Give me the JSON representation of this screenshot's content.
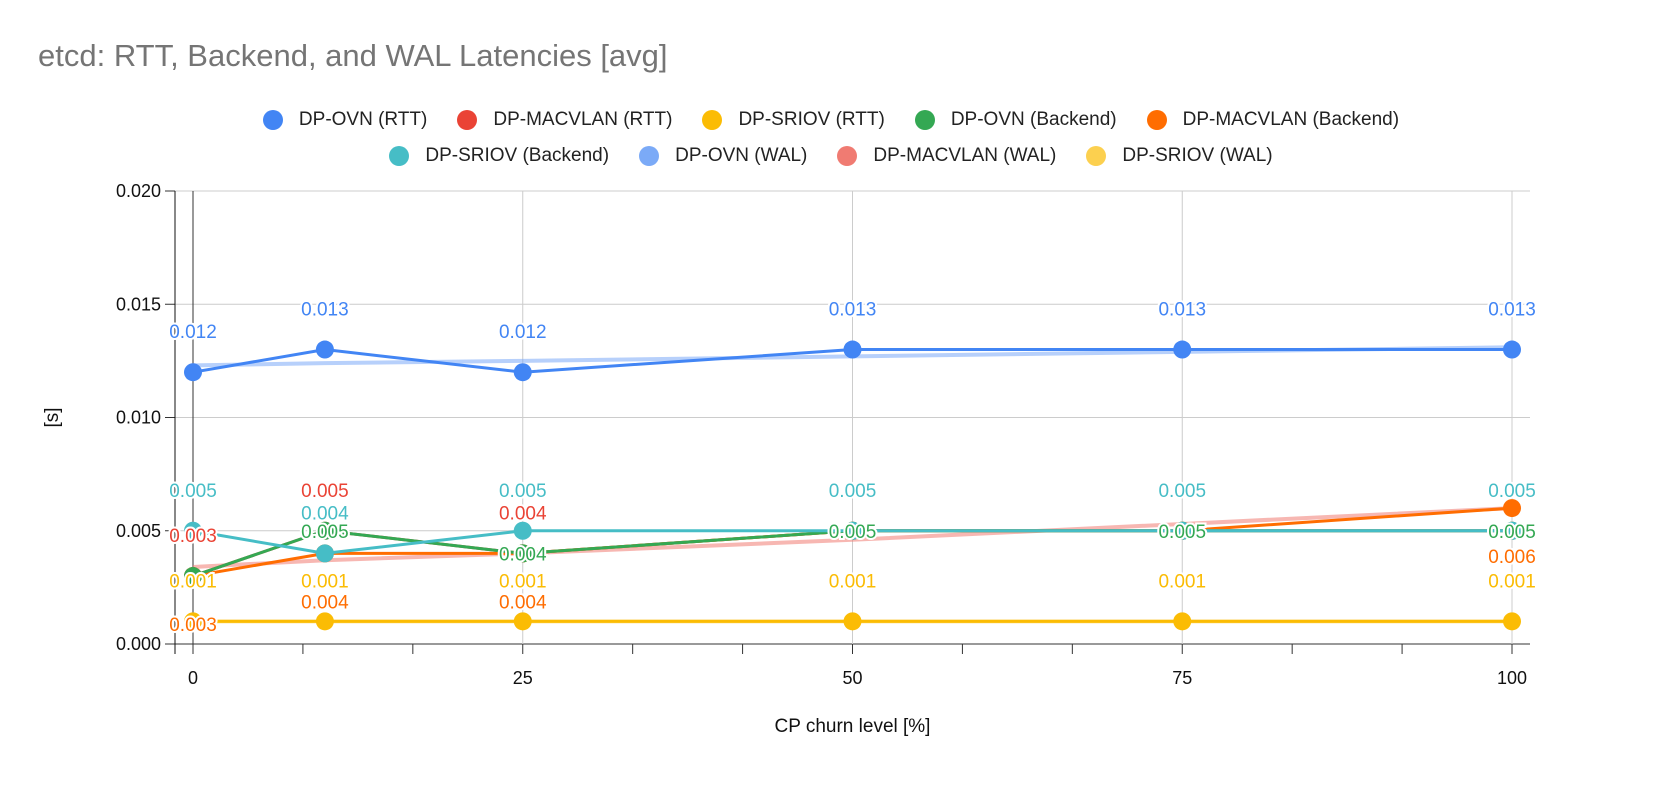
{
  "chart_data": {
    "type": "line",
    "title": "etcd: RTT, Backend, and WAL Latencies [avg]",
    "xlabel": "CP churn level [%]",
    "ylabel": "[s]",
    "x": [
      0,
      10,
      25,
      50,
      75,
      100
    ],
    "xticks": [
      "0",
      "25",
      "50",
      "75",
      "100"
    ],
    "xtick_values": [
      0,
      25,
      50,
      75,
      100
    ],
    "yticks": [
      "0.000",
      "0.005",
      "0.010",
      "0.015",
      "0.020"
    ],
    "ytick_values": [
      0,
      0.005,
      0.01,
      0.015,
      0.02
    ],
    "xlim": [
      0,
      100
    ],
    "ylim": [
      0,
      0.02
    ],
    "grid": true,
    "legend_position": "top",
    "series": [
      {
        "name": "DP-OVN (RTT)",
        "color": "#4285f4",
        "values": [
          0.012,
          0.013,
          0.012,
          0.013,
          0.013,
          0.013
        ],
        "labels": [
          "0.012",
          "0.013",
          "0.012",
          "0.013",
          "0.013",
          "0.013"
        ],
        "label_pos": "above"
      },
      {
        "name": "DP-MACVLAN (RTT)",
        "color": "#ea4335",
        "values": [
          0.003,
          0.005,
          0.004,
          0.005,
          0.005,
          0.005
        ],
        "labels": [
          "0.003",
          "0.005",
          "0.004",
          null,
          null,
          null
        ],
        "label_pos": "above"
      },
      {
        "name": "DP-SRIOV (RTT)",
        "color": "#fbbc04",
        "values": [
          0.001,
          0.001,
          0.001,
          0.001,
          0.001,
          0.001
        ],
        "labels": [
          "0.001",
          "0.001",
          "0.001",
          "0.001",
          "0.001",
          "0.001"
        ],
        "label_pos": "above"
      },
      {
        "name": "DP-OVN (Backend)",
        "color": "#34a853",
        "values": [
          0.003,
          0.005,
          0.004,
          0.005,
          0.005,
          0.005
        ],
        "labels": [
          null,
          "0.005",
          "0.004",
          "0.005",
          "0.005",
          "0.005"
        ],
        "label_pos": "on"
      },
      {
        "name": "DP-MACVLAN (Backend)",
        "color": "#ff6d01",
        "values": [
          0.003,
          0.004,
          0.004,
          0.005,
          0.005,
          0.006
        ],
        "labels": [
          "0.003",
          "0.004",
          "0.004",
          null,
          null,
          "0.006"
        ],
        "label_pos": "below"
      },
      {
        "name": "DP-SRIOV (Backend)",
        "color": "#46bdc6",
        "values": [
          0.005,
          0.004,
          0.005,
          0.005,
          0.005,
          0.005
        ],
        "labels": [
          "0.005",
          "0.004",
          "0.005",
          "0.005",
          "0.005",
          "0.005"
        ],
        "label_pos": "above"
      },
      {
        "name": "DP-OVN (WAL)",
        "color": "#7baaf7",
        "values": [
          0.0123,
          0.0124,
          0.0125,
          0.0127,
          0.0129,
          0.0131
        ],
        "labels": [
          null,
          null,
          null,
          null,
          null,
          null
        ],
        "label_pos": "none"
      },
      {
        "name": "DP-MACVLAN (WAL)",
        "color": "#f07b72",
        "values": [
          0.0034,
          0.0037,
          0.004,
          0.0046,
          0.0053,
          0.006
        ],
        "labels": [
          null,
          null,
          null,
          null,
          null,
          null
        ],
        "label_pos": "none"
      },
      {
        "name": "DP-SRIOV (WAL)",
        "color": "#fcd04f",
        "values": [
          0.001,
          0.001,
          0.001,
          0.001,
          0.001,
          0.001
        ],
        "labels": [
          null,
          null,
          null,
          null,
          null,
          null
        ],
        "label_pos": "none"
      }
    ]
  }
}
